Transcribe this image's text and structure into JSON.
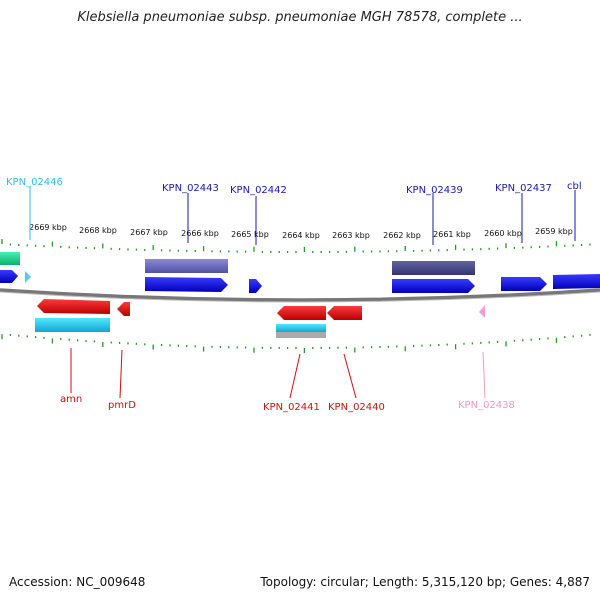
{
  "title": "Klebsiella pneumoniae subsp. pneumoniae MGH 78578, complete ...",
  "footer": {
    "accession": "Accession: NC_009648",
    "summary": "Topology: circular; Length: 5,315,120 bp; Genes: 4,887"
  },
  "scale": {
    "unit": "kbp",
    "ticks": [
      "2669 kbp",
      "2668 kbp",
      "2667 kbp",
      "2666 kbp",
      "2665 kbp",
      "2664 kbp",
      "2663 kbp",
      "2662 kbp",
      "2661 kbp",
      "2660 kbp",
      "2659 kbp"
    ]
  },
  "gene_labels_top": [
    {
      "name": "KPN_02446",
      "color": "#33bbee"
    },
    {
      "name": "KPN_02443",
      "color": "#1a1aaa"
    },
    {
      "name": "KPN_02442",
      "color": "#1a1aaa"
    },
    {
      "name": "KPN_02439",
      "color": "#1a1aaa"
    },
    {
      "name": "KPN_02437",
      "color": "#1a1aaa"
    },
    {
      "name": "cbl",
      "color": "#1a1aaa"
    }
  ],
  "gene_labels_bottom": [
    {
      "name": "amn",
      "color": "#cc1111"
    },
    {
      "name": "pmrD",
      "color": "#cc1111"
    },
    {
      "name": "KPN_02441",
      "color": "#cc1111"
    },
    {
      "name": "KPN_02440",
      "color": "#cc1111"
    },
    {
      "name": "KPN_02438",
      "color": "#ee99cc"
    }
  ],
  "colors": {
    "forward_gene": "#1010e0",
    "reverse_gene": "#e01010",
    "backbone": "#777777",
    "ticks": "#229922",
    "cds_light_blue": "#22ccee",
    "cds_purple": "#6a6ab8",
    "cds_dark_purple": "#4a4a8c",
    "cds_teal": "#22dd99",
    "cds_pink": "#f0a0d0"
  }
}
